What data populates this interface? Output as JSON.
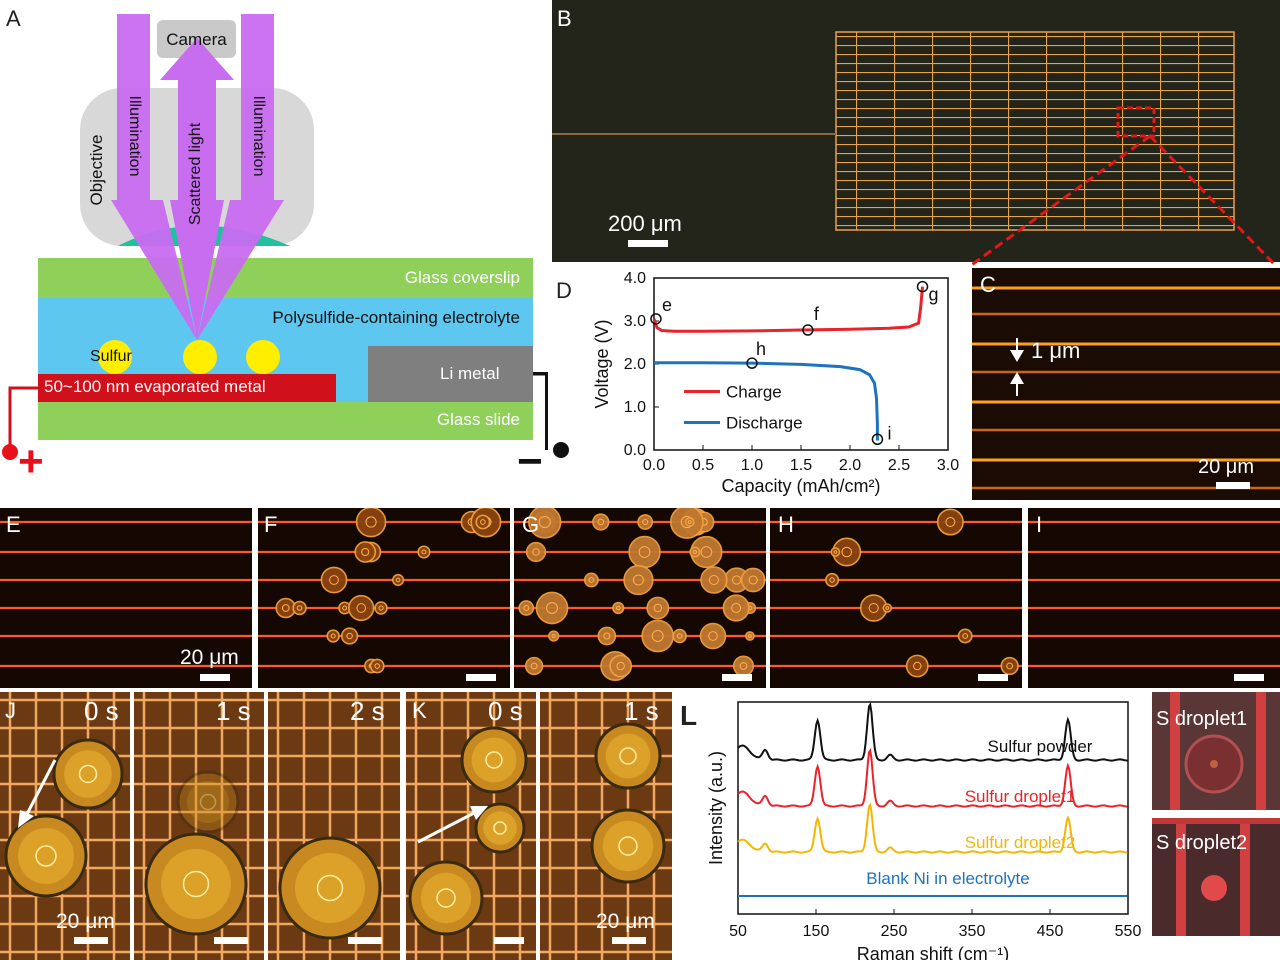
{
  "panel_labels": {
    "A": "A",
    "B": "B",
    "C": "C",
    "D": "D",
    "E": "E",
    "F": "F",
    "G": "G",
    "H": "H",
    "I": "I",
    "J": "J",
    "K": "K",
    "L": "L"
  },
  "schematic": {
    "camera": "Camera",
    "objective": "Objective",
    "illumination": "Illumination",
    "scattered_light": "Scattered light",
    "glass_coverslip": "Glass coverslip",
    "electrolyte": "Polysulfide-containing electrolyte",
    "sulfur": "Sulfur",
    "metal": "50~100 nm evaporated metal",
    "li_metal": "Li metal",
    "glass_slide": "Glass slide",
    "plus": "+",
    "minus": "−"
  },
  "colors": {
    "illumination": "#c86cf0",
    "coverslip": "#8fd05a",
    "electrolyte": "#5ec7f0",
    "metal": "#d0101a",
    "li": "#7f7f7f",
    "sulfur": "#ffee00",
    "objective": "#d8d8d8",
    "lens": "#20c0a0",
    "charge": "#e8232a",
    "discharge": "#1e73be",
    "grid": "#e8a24a"
  },
  "scale_bars": {
    "B": "200 μm",
    "C": "20 μm",
    "E": "20 μm",
    "J": "20 μm",
    "K": "20 μm",
    "C_gap": "1 μm"
  },
  "time_labels": {
    "J0": "0 s",
    "J1": "1 s",
    "J2": "2 s",
    "K0": "0 s",
    "K1": "1 s"
  },
  "raman_insets": {
    "d1": "S droplet1",
    "d2": "S droplet2"
  },
  "chart_data": [
    {
      "type": "line",
      "title": "",
      "xlabel": "Capacity (mAh/cm²)",
      "ylabel": "Voltage (V)",
      "xlim": [
        0,
        3.0
      ],
      "ylim": [
        0,
        4.0
      ],
      "xticks": [
        "0.0",
        "0.5",
        "1.0",
        "1.5",
        "2.0",
        "2.5",
        "3.0"
      ],
      "yticks": [
        "0.0",
        "1.0",
        "2.0",
        "3.0",
        "4.0"
      ],
      "legend_position": "center-left",
      "series": [
        {
          "name": "Charge",
          "color": "#e8232a",
          "x": [
            0,
            0.03,
            0.08,
            0.2,
            0.5,
            1.0,
            1.5,
            2.0,
            2.4,
            2.6,
            2.7,
            2.72,
            2.74
          ],
          "y": [
            3.05,
            2.85,
            2.78,
            2.76,
            2.76,
            2.77,
            2.79,
            2.81,
            2.83,
            2.86,
            2.95,
            3.3,
            3.8
          ]
        },
        {
          "name": "Discharge",
          "color": "#1e73be",
          "x": [
            0,
            0.5,
            1.0,
            1.5,
            1.9,
            2.1,
            2.2,
            2.25,
            2.27,
            2.28,
            2.28
          ],
          "y": [
            2.03,
            2.03,
            2.02,
            1.99,
            1.94,
            1.87,
            1.75,
            1.55,
            1.2,
            0.6,
            0.22
          ]
        }
      ],
      "points": [
        {
          "label": "e",
          "x": 0.02,
          "y": 3.05
        },
        {
          "label": "f",
          "x": 1.57,
          "y": 2.79
        },
        {
          "label": "g",
          "x": 2.74,
          "y": 3.8
        },
        {
          "label": "h",
          "x": 1.0,
          "y": 2.02
        },
        {
          "label": "i",
          "x": 2.28,
          "y": 0.25
        }
      ]
    },
    {
      "type": "line",
      "title": "",
      "xlabel": "Raman shift (cm⁻¹)",
      "ylabel": "Intensity (a.u.)",
      "xlim": [
        50,
        550
      ],
      "xticks": [
        "50",
        "150",
        "250",
        "350",
        "450",
        "550"
      ],
      "series": [
        {
          "name": "Sulfur powder",
          "color": "#111111"
        },
        {
          "name": "Sulfur droplet1",
          "color": "#e8232a"
        },
        {
          "name": "Sulfur droplet2",
          "color": "#f2b705"
        },
        {
          "name": "Blank Ni in electrolyte",
          "color": "#1e73be"
        }
      ],
      "peaks": [
        {
          "x": 85,
          "h": 0.25
        },
        {
          "x": 152,
          "h": 1.0
        },
        {
          "x": 219,
          "h": 1.4
        },
        {
          "x": 245,
          "h": 0.12
        },
        {
          "x": 473,
          "h": 1.0
        }
      ]
    }
  ]
}
